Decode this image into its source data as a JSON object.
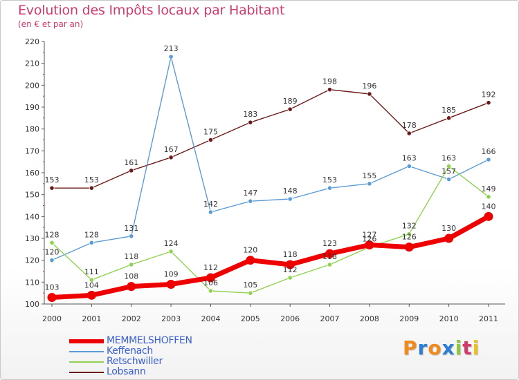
{
  "header": {
    "title": "Evolution des Impôts locaux par Habitant",
    "subtitle": "(en € et par an)"
  },
  "logo": {
    "text": "Proxiti",
    "letters": [
      "P",
      "r",
      "o",
      "x",
      "i",
      "t",
      "i"
    ],
    "colors": [
      "#f08a1c",
      "#2a7fd4",
      "#f08a1c",
      "#2a7fd4",
      "#8dc63f",
      "#d23a6e",
      "#f0c01c"
    ]
  },
  "chart_data": {
    "type": "line",
    "x": [
      "2000",
      "2001",
      "2002",
      "2003",
      "2004",
      "2005",
      "2006",
      "2007",
      "2008",
      "2009",
      "2010",
      "2011"
    ],
    "ylim": [
      100,
      220
    ],
    "yticks": [
      100,
      110,
      120,
      130,
      140,
      150,
      160,
      170,
      180,
      190,
      200,
      210,
      220
    ],
    "grid": false,
    "legend": "bottom-left",
    "series": [
      {
        "name": "Lobsann",
        "color": "#6b1a1a",
        "values": [
          153,
          153,
          161,
          167,
          175,
          183,
          189,
          198,
          196,
          178,
          185,
          192
        ]
      },
      {
        "name": "Keffenach",
        "color": "#5b9bd5",
        "values": [
          120,
          128,
          131,
          213,
          142,
          147,
          148,
          153,
          155,
          163,
          157,
          166
        ]
      },
      {
        "name": "Retschwiller",
        "color": "#8fd14f",
        "values": [
          128,
          111,
          118,
          124,
          106,
          105,
          112,
          118,
          126,
          132,
          163,
          149
        ]
      },
      {
        "name": "MEMMELSHOFFEN",
        "color": "#ee0000",
        "values": [
          103,
          104,
          108,
          109,
          112,
          120,
          118,
          123,
          127,
          126,
          130,
          140
        ]
      }
    ],
    "legend_order": [
      "MEMMELSHOFFEN",
      "Keffenach",
      "Retschwiller",
      "Lobsann"
    ]
  }
}
